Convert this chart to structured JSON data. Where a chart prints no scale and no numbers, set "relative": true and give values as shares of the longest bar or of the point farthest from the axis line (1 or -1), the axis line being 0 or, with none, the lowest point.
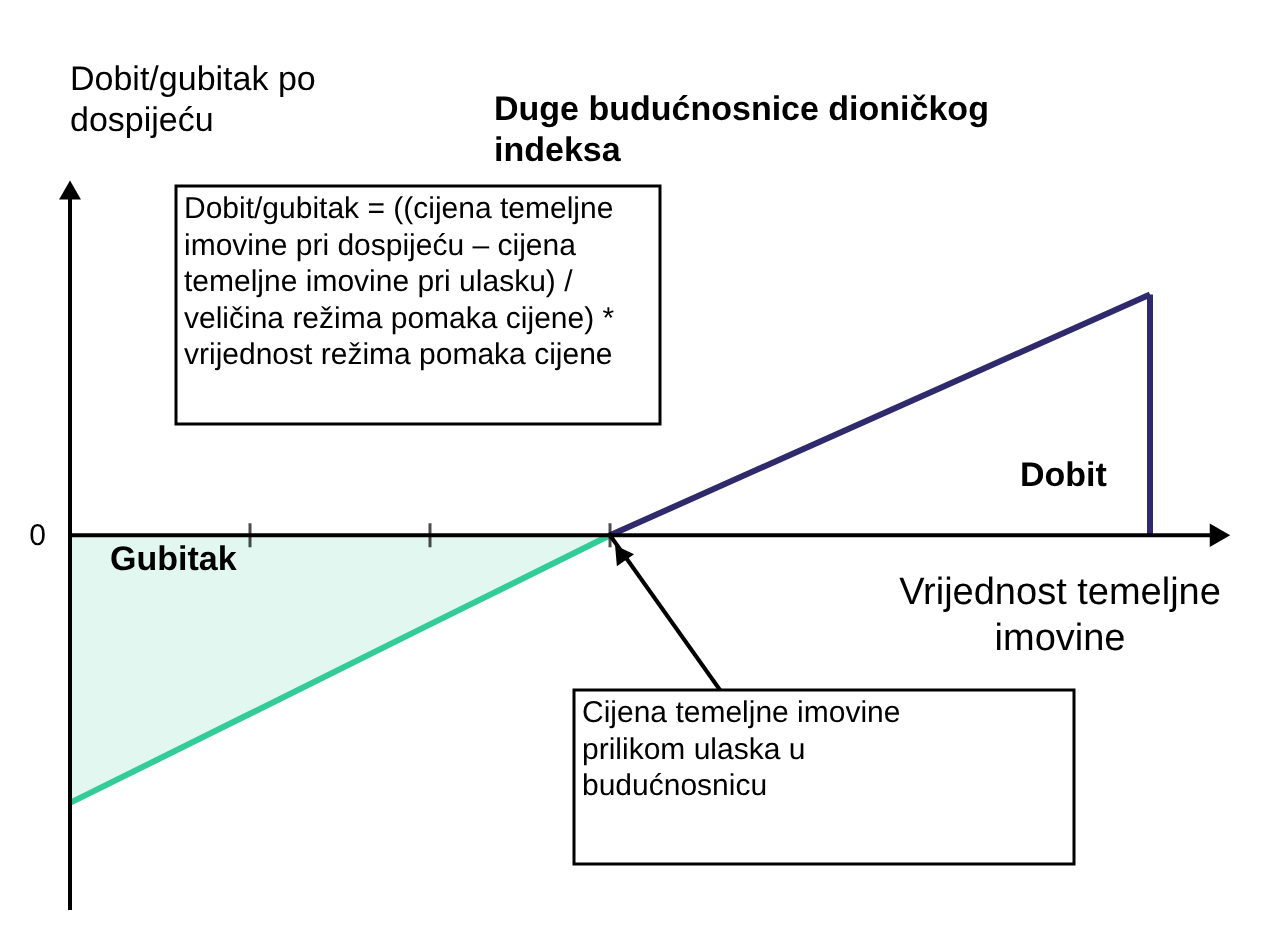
{
  "chart_data": {
    "type": "line",
    "title": "Duge budućnosnice dioničkog indeksa",
    "xlabel": "Vrijednost temeljne imovine",
    "ylabel": "Dobit/gubitak po dospijeću",
    "relative": true,
    "categories": [
      null,
      null,
      null,
      null,
      null,
      null,
      null
    ],
    "series": [
      {
        "type": "area",
        "color": "#33cc99",
        "values": [
          -1,
          -0.667,
          -0.333,
          0,
          null,
          null,
          null
        ]
      },
      {
        "type": "line",
        "color": "#2e2a6b",
        "values": [
          null,
          null,
          null,
          0,
          0.3,
          0.6,
          0.9
        ]
      }
    ],
    "ref_lines": [
      {
        "axis": "y",
        "value": 0,
        "label": "0"
      }
    ],
    "annotations": [
      "Dobit/gubitak = ((cijena temeljne imovine pri dospijeću – cijena temeljne imovine pri ulasku) / veličina režima pomaka cijene) * vrijednost režima pomaka cijene",
      "Gubitak",
      "Dobit",
      "Cijena temeljne imovine prilikom ulaska u budućnosnicu"
    ],
    "line_style": "solid"
  }
}
